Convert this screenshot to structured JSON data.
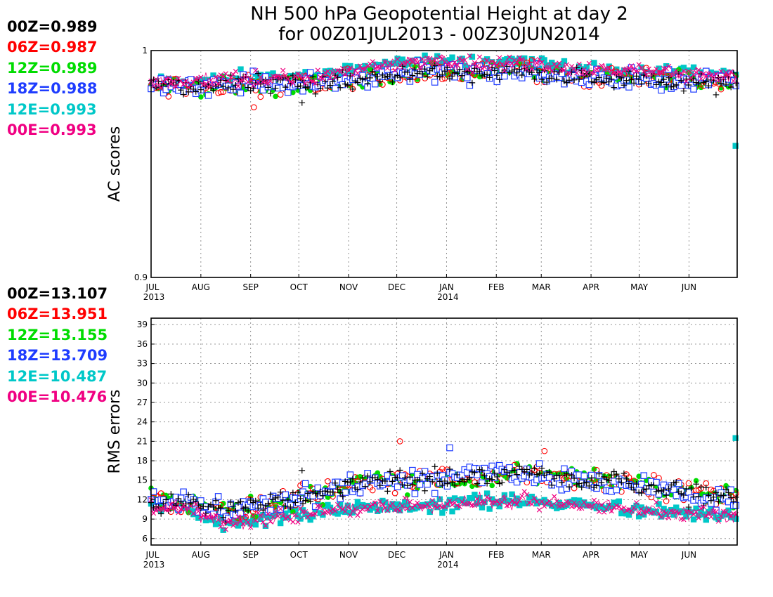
{
  "title": {
    "line1": "NH 500 hPa Geopotential Height at day 2",
    "line2": "for 00Z01JUL2013 - 00Z30JUN2014"
  },
  "chart_data": [
    {
      "type": "scatter",
      "panel": "ac",
      "ylabel": "AC scores",
      "ylim": [
        0.9,
        1.0
      ],
      "y_ticks": [
        "0.9",
        "1"
      ],
      "x_ticks": [
        "JUL",
        "AUG",
        "SEP",
        "OCT",
        "NOV",
        "DEC",
        "JAN",
        "FEB",
        "MAR",
        "APR",
        "MAY",
        "JUN"
      ],
      "x_subticks": {
        "JUL": "2013",
        "JAN": "2014"
      },
      "x_range_days": [
        0,
        365
      ],
      "grid": true,
      "legend": "left-of-plot",
      "series": [
        {
          "key": "00Z",
          "value": "0.989",
          "color": "#000000",
          "marker": "plus"
        },
        {
          "key": "06Z",
          "value": "0.987",
          "color": "#ff0000",
          "marker": "open-circle"
        },
        {
          "key": "12Z",
          "value": "0.989",
          "color": "#00dc00",
          "marker": "filled-circle"
        },
        {
          "key": "18Z",
          "value": "0.988",
          "color": "#1e3cff",
          "marker": "open-square"
        },
        {
          "key": "12E",
          "value": "0.993",
          "color": "#00c8c8",
          "marker": "filled-square"
        },
        {
          "key": "00E",
          "value": "0.993",
          "color": "#f00082",
          "marker": "cross"
        }
      ],
      "monthly_typical": {
        "months": [
          "JUL",
          "AUG",
          "SEP",
          "OCT",
          "NOV",
          "DEC",
          "JAN",
          "FEB",
          "MAR",
          "APR",
          "MAY",
          "JUN"
        ],
        "ens_mean": [
          0.986,
          0.987,
          0.988,
          0.989,
          0.993,
          0.995,
          0.994,
          0.995,
          0.992,
          0.991,
          0.99,
          0.989
        ],
        "gfs_cycles": [
          0.984,
          0.985,
          0.985,
          0.986,
          0.988,
          0.991,
          0.99,
          0.992,
          0.988,
          0.988,
          0.987,
          0.986
        ]
      },
      "notable_points": [
        {
          "series": "00Z",
          "month": "OCT",
          "y": 0.977
        },
        {
          "series": "06Z",
          "month": "SEP",
          "y": 0.975
        },
        {
          "series": "12E",
          "month": "end",
          "y": 0.958
        }
      ]
    },
    {
      "type": "scatter",
      "panel": "rms",
      "ylabel": "RMS errors",
      "ylim": [
        5,
        40
      ],
      "y_ticks": [
        "6",
        "9",
        "12",
        "15",
        "18",
        "21",
        "24",
        "27",
        "30",
        "33",
        "36",
        "39"
      ],
      "x_ticks": [
        "JUL",
        "AUG",
        "SEP",
        "OCT",
        "NOV",
        "DEC",
        "JAN",
        "FEB",
        "MAR",
        "APR",
        "MAY",
        "JUN"
      ],
      "x_subticks": {
        "JUL": "2013",
        "JAN": "2014"
      },
      "x_range_days": [
        0,
        365
      ],
      "grid": true,
      "legend": "left-of-plot",
      "series": [
        {
          "key": "00Z",
          "value": "13.107",
          "color": "#000000",
          "marker": "plus"
        },
        {
          "key": "06Z",
          "value": "13.951",
          "color": "#ff0000",
          "marker": "open-circle"
        },
        {
          "key": "12Z",
          "value": "13.155",
          "color": "#00dc00",
          "marker": "filled-circle"
        },
        {
          "key": "18Z",
          "value": "13.709",
          "color": "#1e3cff",
          "marker": "open-square"
        },
        {
          "key": "12E",
          "value": "10.487",
          "color": "#00c8c8",
          "marker": "filled-square"
        },
        {
          "key": "00E",
          "value": "10.476",
          "color": "#f00082",
          "marker": "cross"
        }
      ],
      "monthly_typical": {
        "months": [
          "JUL",
          "AUG",
          "SEP",
          "OCT",
          "NOV",
          "DEC",
          "JAN",
          "FEB",
          "MAR",
          "APR",
          "MAY",
          "JUN"
        ],
        "ens_mean": [
          11.2,
          8.6,
          9.2,
          10.2,
          10.8,
          11.2,
          11.5,
          12.0,
          11.3,
          10.8,
          10.0,
          9.6
        ],
        "gfs_cycles": [
          12.0,
          10.2,
          11.5,
          13.2,
          14.8,
          15.0,
          15.5,
          16.0,
          15.4,
          14.8,
          13.5,
          12.5
        ]
      },
      "notable_points": [
        {
          "series": "06Z",
          "month": "DEC",
          "y": 21.0
        },
        {
          "series": "12E",
          "month": "end",
          "y": 21.5
        },
        {
          "series": "18Z",
          "month": "JAN",
          "y": 20.0
        },
        {
          "series": "06Z",
          "month": "MAR",
          "y": 19.5
        },
        {
          "series": "00Z",
          "month": "OCT",
          "y": 16.5
        }
      ]
    }
  ]
}
